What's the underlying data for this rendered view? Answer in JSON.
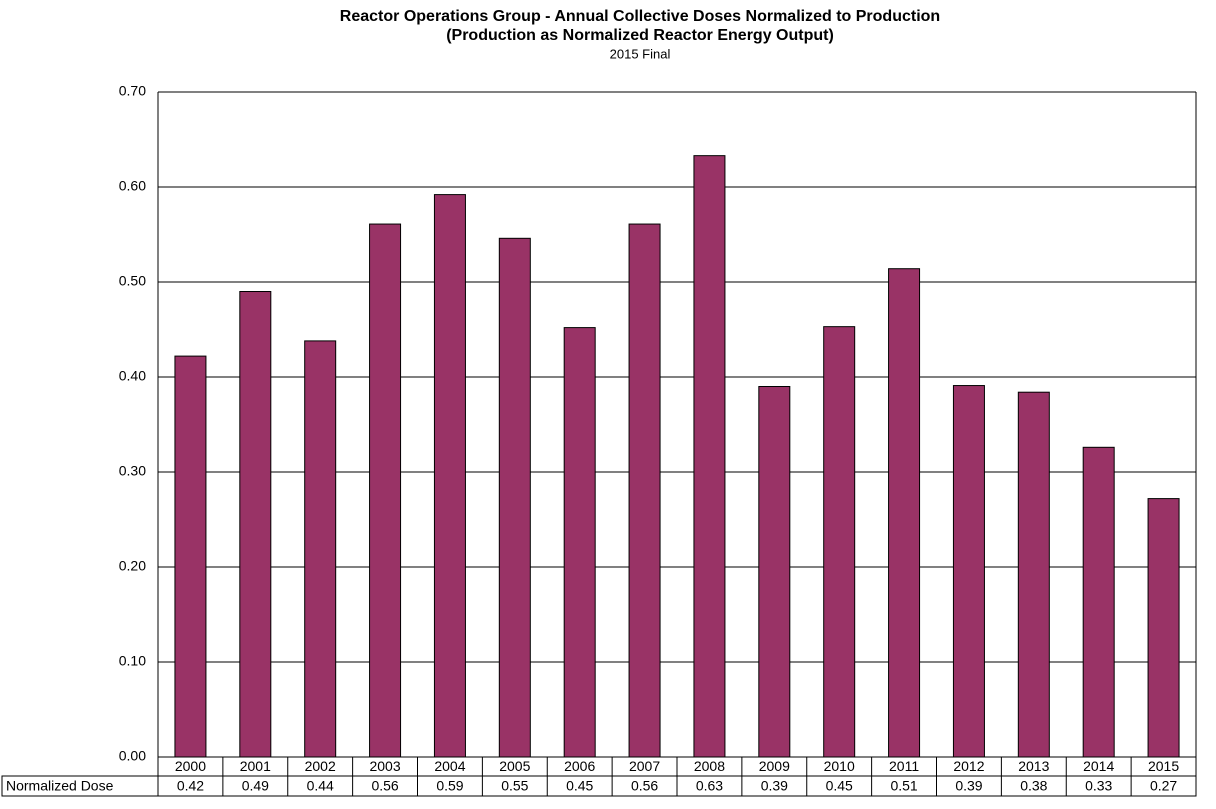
{
  "chart_data": {
    "type": "bar",
    "title": "Reactor Operations Group - Annual Collective Doses Normalized to Production",
    "subtitle": "(Production as Normalized Reactor Energy Output)",
    "note": "2015 Final",
    "categories": [
      "2000",
      "2001",
      "2002",
      "2003",
      "2004",
      "2005",
      "2006",
      "2007",
      "2008",
      "2009",
      "2010",
      "2011",
      "2012",
      "2013",
      "2014",
      "2015"
    ],
    "series": [
      {
        "name": "Normalized Dose",
        "color": "#993366",
        "values": [
          0.422,
          0.49,
          0.438,
          0.561,
          0.592,
          0.546,
          0.452,
          0.561,
          0.633,
          0.39,
          0.453,
          0.514,
          0.391,
          0.384,
          0.326,
          0.272
        ],
        "value_labels": [
          "0.42",
          "0.49",
          "0.44",
          "0.56",
          "0.59",
          "0.55",
          "0.45",
          "0.56",
          "0.63",
          "0.39",
          "0.45",
          "0.51",
          "0.39",
          "0.38",
          "0.33",
          "0.27"
        ]
      }
    ],
    "ylim": [
      0,
      0.7
    ],
    "yticks": [
      {
        "value": 0,
        "label": "0.00"
      },
      {
        "value": 0.1,
        "label": "0.10"
      },
      {
        "value": 0.2,
        "label": "0.20"
      },
      {
        "value": 0.3,
        "label": "0.30"
      },
      {
        "value": 0.4,
        "label": "0.40"
      },
      {
        "value": 0.5,
        "label": "0.50"
      },
      {
        "value": 0.6,
        "label": "0.60"
      },
      {
        "value": 0.7,
        "label": "0.70"
      }
    ],
    "grid": true
  }
}
